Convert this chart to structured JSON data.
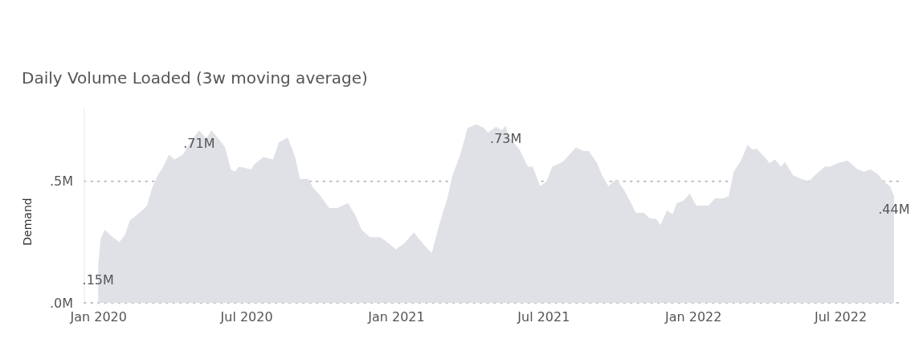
{
  "chart_data": {
    "type": "area",
    "title": "Daily Volume Loaded (3w moving average)",
    "ylabel": "Demand",
    "x": [
      "2020-01-01",
      "2020-01-04",
      "2020-01-09",
      "2020-01-19",
      "2020-01-27",
      "2020-02-03",
      "2020-02-09",
      "2020-02-17",
      "2020-02-24",
      "2020-03-01",
      "2020-03-08",
      "2020-03-15",
      "2020-03-21",
      "2020-03-28",
      "2020-04-04",
      "2020-04-14",
      "2020-04-26",
      "2020-05-04",
      "2020-05-13",
      "2020-05-19",
      "2020-05-28",
      "2020-06-05",
      "2020-06-12",
      "2020-06-17",
      "2020-06-22",
      "2020-07-07",
      "2020-07-11",
      "2020-07-22",
      "2020-08-03",
      "2020-08-10",
      "2020-08-21",
      "2020-08-30",
      "2020-09-05",
      "2020-09-15",
      "2020-09-22",
      "2020-09-28",
      "2020-10-11",
      "2020-10-21",
      "2020-11-03",
      "2020-11-12",
      "2020-11-20",
      "2020-11-30",
      "2020-12-12",
      "2020-12-19",
      "2021-01-01",
      "2021-01-11",
      "2021-01-23",
      "2021-02-04",
      "2021-02-14",
      "2021-02-23",
      "2021-03-05",
      "2021-03-11",
      "2021-03-21",
      "2021-03-30",
      "2021-04-10",
      "2021-04-19",
      "2021-04-24",
      "2021-05-04",
      "2021-05-11",
      "2021-05-16",
      "2021-05-19",
      "2021-06-02",
      "2021-06-12",
      "2021-06-18",
      "2021-06-27",
      "2021-07-05",
      "2021-07-12",
      "2021-07-25",
      "2021-08-10",
      "2021-08-20",
      "2021-08-26",
      "2021-09-05",
      "2021-09-12",
      "2021-09-19",
      "2021-09-29",
      "2021-10-09",
      "2021-10-23",
      "2021-11-02",
      "2021-11-08",
      "2021-11-17",
      "2021-11-22",
      "2021-11-30",
      "2021-12-07",
      "2021-12-12",
      "2021-12-20",
      "2021-12-28",
      "2022-01-05",
      "2022-01-11",
      "2022-01-20",
      "2022-01-28",
      "2022-02-07",
      "2022-02-14",
      "2022-02-20",
      "2022-03-01",
      "2022-03-09",
      "2022-03-15",
      "2022-03-20",
      "2022-03-30",
      "2022-04-05",
      "2022-04-12",
      "2022-04-19",
      "2022-04-24",
      "2022-05-04",
      "2022-05-14",
      "2022-05-24",
      "2022-05-29",
      "2022-06-12",
      "2022-06-18",
      "2022-06-28",
      "2022-07-10",
      "2022-07-22",
      "2022-07-30",
      "2022-08-07",
      "2022-08-16",
      "2022-08-23",
      "2022-08-31",
      "2022-09-05"
    ],
    "series": [
      {
        "color": "#dfe1e6",
        "values": [
          0.15,
          0.265,
          0.3,
          0.27,
          0.25,
          0.28,
          0.34,
          0.36,
          0.38,
          0.4,
          0.48,
          0.53,
          0.56,
          0.61,
          0.59,
          0.61,
          0.675,
          0.71,
          0.675,
          0.71,
          0.675,
          0.64,
          0.55,
          0.54,
          0.56,
          0.55,
          0.57,
          0.6,
          0.59,
          0.66,
          0.68,
          0.6,
          0.51,
          0.51,
          0.47,
          0.45,
          0.39,
          0.39,
          0.41,
          0.36,
          0.3,
          0.27,
          0.27,
          0.255,
          0.22,
          0.245,
          0.29,
          0.24,
          0.205,
          0.32,
          0.43,
          0.52,
          0.61,
          0.72,
          0.735,
          0.72,
          0.7,
          0.725,
          0.71,
          0.73,
          0.685,
          0.63,
          0.56,
          0.56,
          0.48,
          0.5,
          0.56,
          0.58,
          0.64,
          0.625,
          0.625,
          0.575,
          0.52,
          0.48,
          0.51,
          0.46,
          0.37,
          0.37,
          0.35,
          0.345,
          0.32,
          0.38,
          0.365,
          0.41,
          0.42,
          0.45,
          0.4,
          0.4,
          0.4,
          0.43,
          0.43,
          0.44,
          0.54,
          0.585,
          0.65,
          0.63,
          0.635,
          0.6,
          0.575,
          0.59,
          0.56,
          0.58,
          0.525,
          0.51,
          0.5,
          0.52,
          0.56,
          0.56,
          0.575,
          0.585,
          0.55,
          0.54,
          0.55,
          0.53,
          0.5,
          0.48,
          0.44
        ]
      }
    ],
    "xlim": [
      "2019-12-15",
      "2022-09-12"
    ],
    "xticks": [
      {
        "value": "2020-01-01",
        "label": "Jan 2020"
      },
      {
        "value": "2020-07-01",
        "label": "Jul 2020"
      },
      {
        "value": "2021-01-01",
        "label": "Jan 2021"
      },
      {
        "value": "2021-07-01",
        "label": "Jul 2021"
      },
      {
        "value": "2022-01-01",
        "label": "Jan 2022"
      },
      {
        "value": "2022-07-01",
        "label": "Jul 2022"
      }
    ],
    "ylim": [
      0,
      0.8
    ],
    "yticks": [
      {
        "value": 0,
        "label": ".0M"
      },
      {
        "value": 0.5,
        "label": ".5M"
      }
    ],
    "grid": "y",
    "annotations": [
      {
        "text": ".15M",
        "x": "2020-01-01",
        "y": 0.15
      },
      {
        "text": ".71M",
        "x": "2020-05-04",
        "y": 0.71
      },
      {
        "text": ".73M",
        "x": "2021-05-16",
        "y": 0.73
      },
      {
        "text": ".44M",
        "x": "2022-09-05",
        "y": 0.44
      }
    ]
  }
}
